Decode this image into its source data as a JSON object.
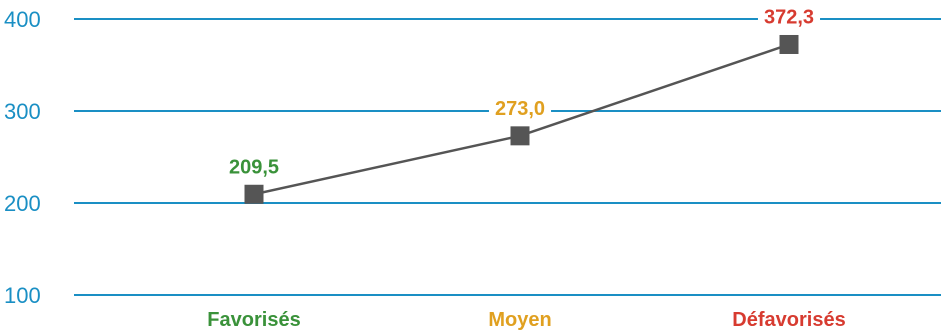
{
  "chart_data": {
    "type": "line",
    "categories": [
      "Favorisés",
      "Moyen",
      "Défavorisés"
    ],
    "category_colors": [
      "#3a923a",
      "#e0a020",
      "#d73b30"
    ],
    "values": [
      209.5,
      273.0,
      372.3
    ],
    "value_labels": [
      "209,5",
      "273,0",
      "372,3"
    ],
    "ylim": [
      100,
      400
    ],
    "yticks": [
      100,
      200,
      300,
      400
    ],
    "ytick_labels": [
      "100",
      "200",
      "300",
      "400"
    ],
    "grid": true,
    "colors": {
      "grid": "#1a8fc4",
      "tick_label": "#1a8fc4",
      "line": "#555555",
      "marker": "#555555"
    }
  }
}
